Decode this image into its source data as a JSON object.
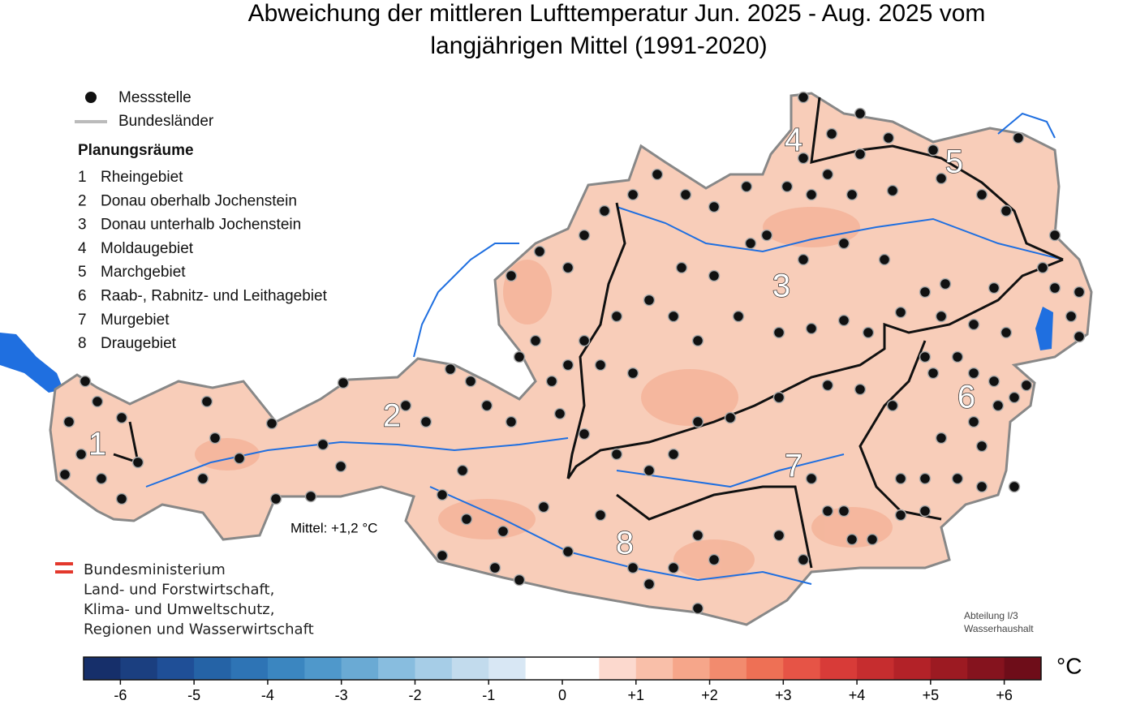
{
  "title_lines": [
    "Abweichung der mittleren Lufttemperatur Jun. 2025 - Aug. 2025 vom",
    "langjährigen Mittel (1991-2020)"
  ],
  "legend": {
    "station": "Messstelle",
    "states": "Bundesländer"
  },
  "planning": {
    "title": "Planungsräume",
    "areas": [
      {
        "number": "1",
        "name": "Rheingebiet"
      },
      {
        "number": "2",
        "name": "Donau oberhalb Jochenstein"
      },
      {
        "number": "3",
        "name": "Donau unterhalb Jochenstein"
      },
      {
        "number": "4",
        "name": "Moldaugebiet"
      },
      {
        "number": "5",
        "name": "Marchgebiet"
      },
      {
        "number": "6",
        "name": "Raab-, Rabnitz- und Leithagebiet"
      },
      {
        "number": "7",
        "name": "Murgebiet"
      },
      {
        "number": "8",
        "name": "Draugebiet"
      }
    ]
  },
  "mean_label": "Mittel: +1,2 °C",
  "ministry": [
    "Bundesministerium",
    "Land- und Forstwirtschaft,",
    "Klima- und Umweltschutz,",
    "Regionen und Wasserwirtschaft"
  ],
  "department": [
    "Abteilung I/3",
    "Wasserhaushalt"
  ],
  "colorbar": {
    "lim": [
      -6.5,
      6.5
    ],
    "unit": "°C",
    "ticks": [
      -6,
      -5,
      -4,
      -3,
      -2,
      -1,
      0,
      {
        "value": 1,
        "label": "+1"
      },
      {
        "value": 2,
        "label": "+2"
      },
      {
        "value": 3,
        "label": "+3"
      },
      {
        "value": 4,
        "label": "+4"
      },
      {
        "value": 5,
        "label": "+5"
      },
      {
        "value": 6,
        "label": "+6"
      }
    ],
    "colors": [
      "#162f6a",
      "#1b3f80",
      "#1f4f97",
      "#2563a6",
      "#2e74b5",
      "#3b86c0",
      "#4f98cb",
      "#6aaad4",
      "#88bddf",
      "#a6cde7",
      "#c2dbed",
      "#d8e7f4",
      "#ffffff",
      "#ffffff",
      "#fcd9ce",
      "#f9bfa9",
      "#f6a68a",
      "#f28b6e",
      "#ee7055",
      "#e65446",
      "#d83b38",
      "#c62d2f",
      "#b32228",
      "#9c1a22",
      "#85131e",
      "#6e0d19"
    ]
  }
}
